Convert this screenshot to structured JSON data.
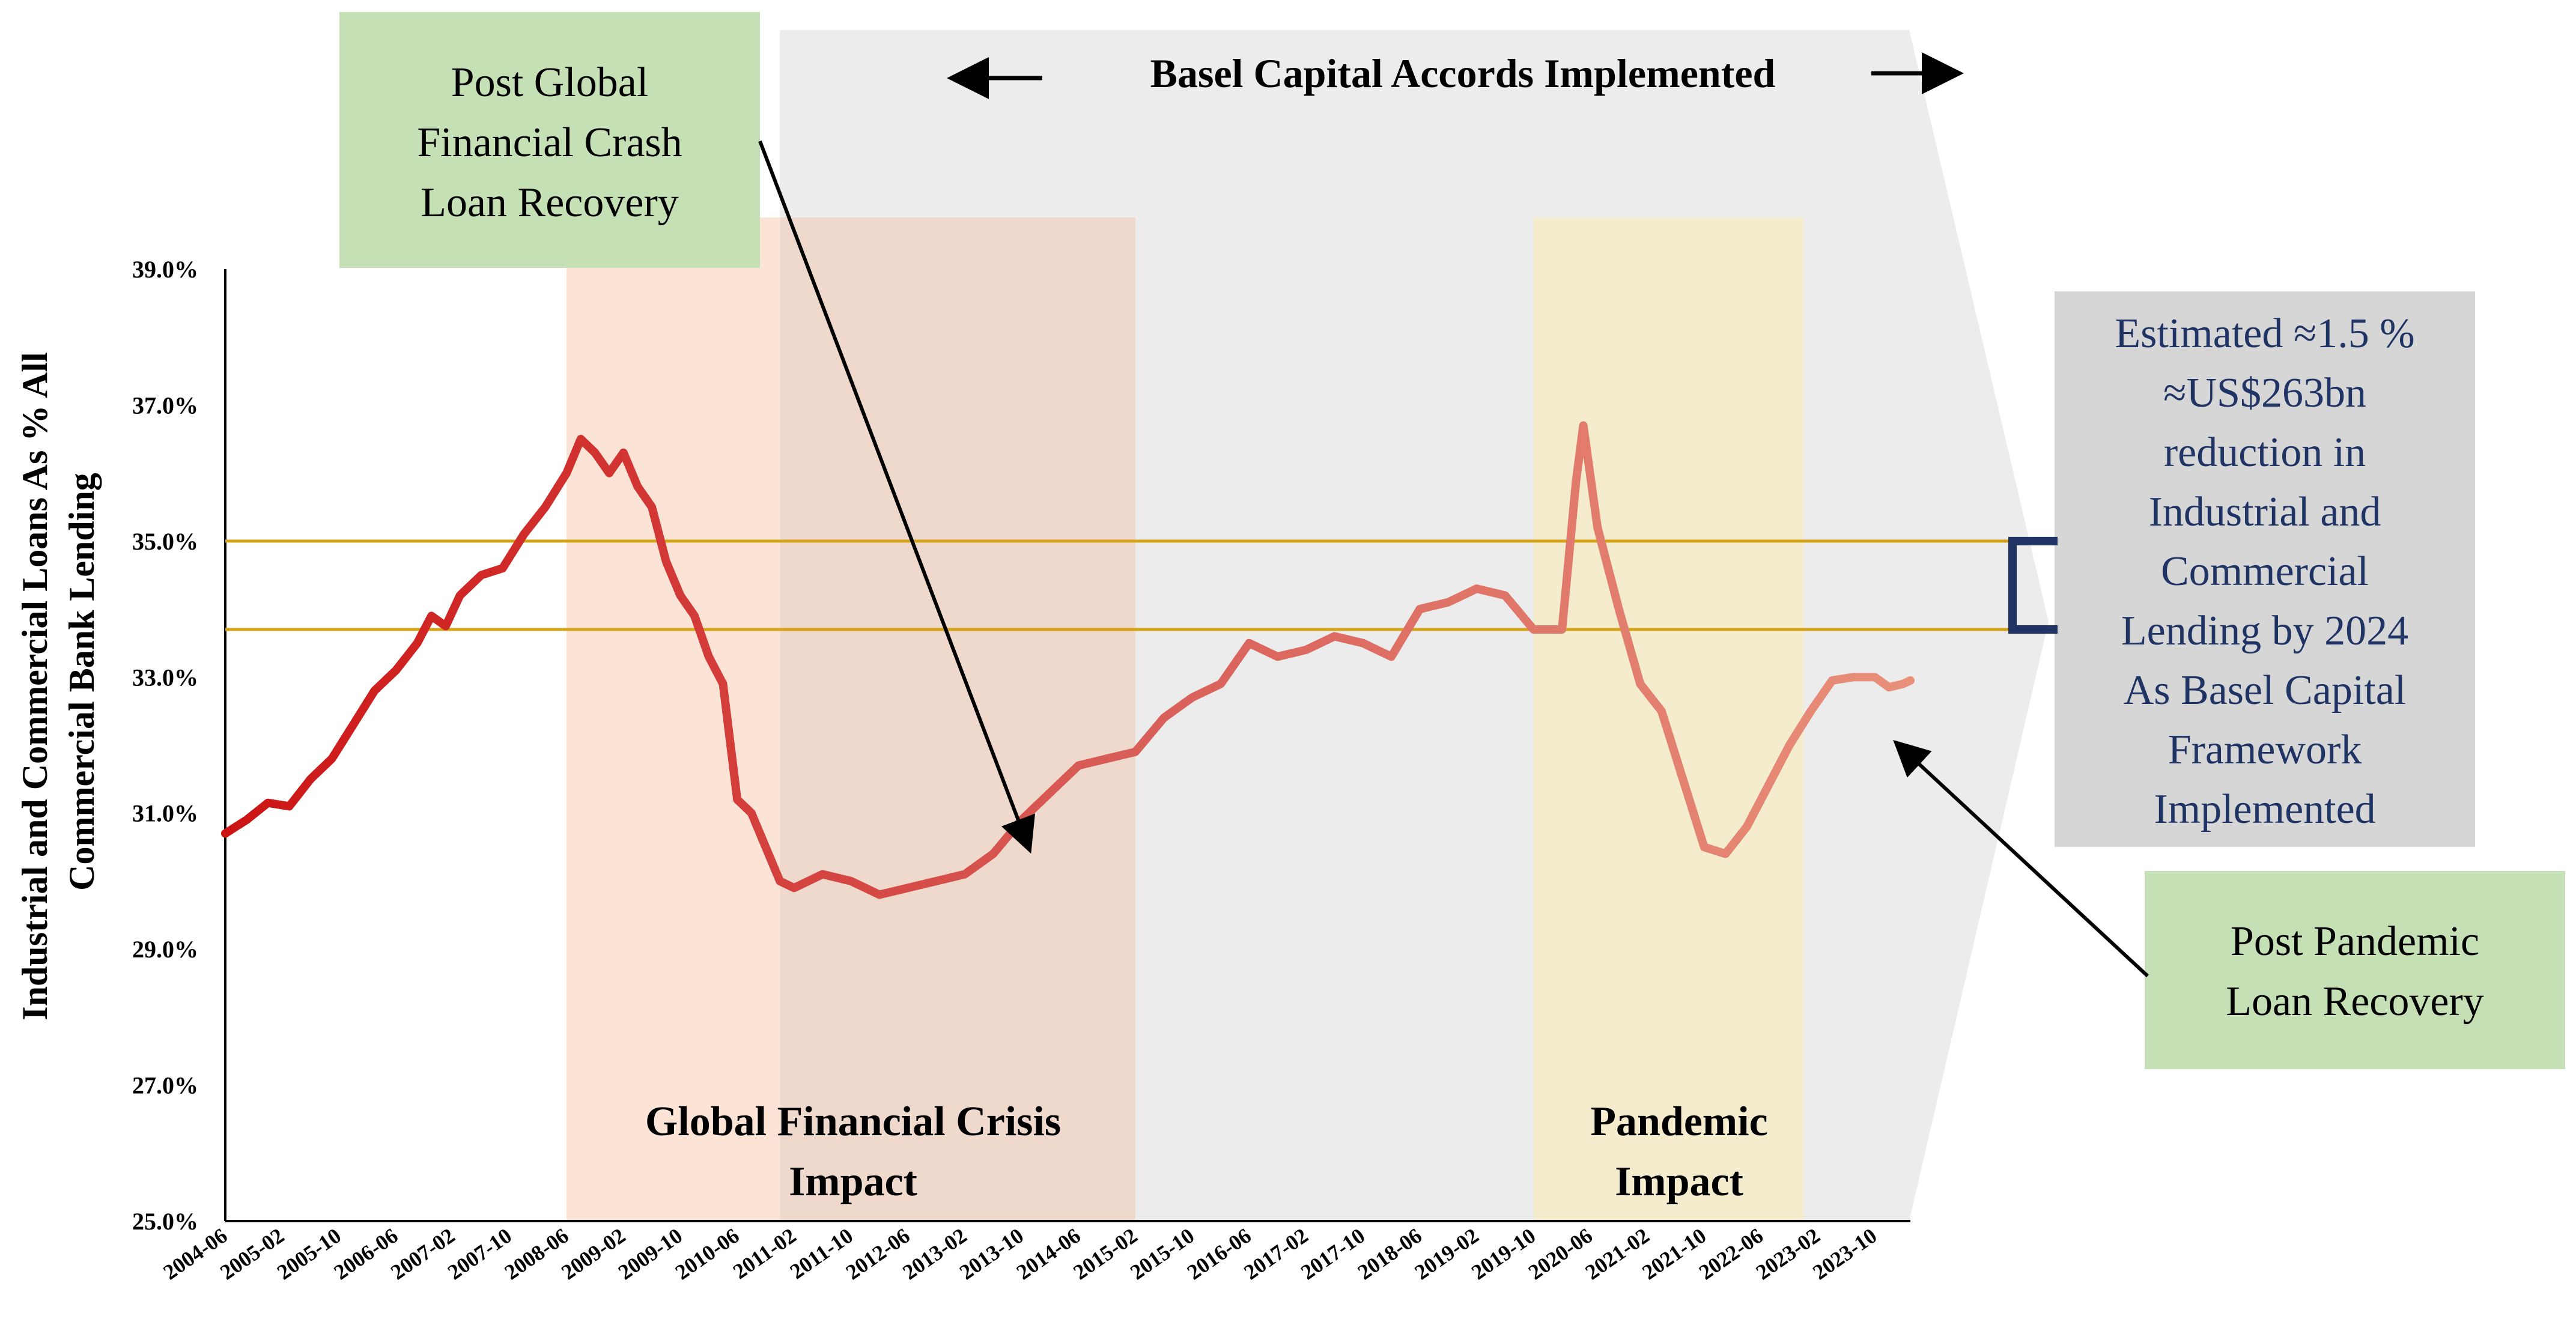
{
  "colors": {
    "basel_region": "#ececec",
    "gfc_band": "#fbe3d6",
    "gfc_overlap": "#efd9cd",
    "pandemic_band": "#f5ebcd",
    "reference_line": "#d4a51a",
    "bracket": "#1f3464",
    "callout_green": "#c5e0b4",
    "callout_gray": "#d6d6d6",
    "callout_gray_text": "#1f3464",
    "line_start": "#cc1414",
    "line_end": "#e8907a"
  },
  "chart_data": {
    "type": "line",
    "ylabel": "Industrial and Commercial Loans As % All Commercial Bank Lending",
    "ylim": [
      25.0,
      39.0
    ],
    "y_ticks": [
      "25.0%",
      "27.0%",
      "29.0%",
      "31.0%",
      "33.0%",
      "35.0%",
      "37.0%",
      "39.0%"
    ],
    "x_range": [
      "2004-06",
      "2024-03"
    ],
    "x_ticks": [
      "2004-06",
      "2005-02",
      "2005-10",
      "2006-06",
      "2007-02",
      "2007-10",
      "2008-06",
      "2009-02",
      "2009-10",
      "2010-06",
      "2011-02",
      "2011-10",
      "2012-06",
      "2013-02",
      "2013-10",
      "2014-06",
      "2015-02",
      "2015-10",
      "2016-06",
      "2017-02",
      "2017-10",
      "2018-06",
      "2019-02",
      "2019-10",
      "2020-06",
      "2021-02",
      "2021-10",
      "2022-06",
      "2023-02",
      "2023-10"
    ],
    "series": [
      {
        "name": "Industrial and Commercial Loans %",
        "points": [
          [
            "2004-06",
            30.7
          ],
          [
            "2004-09",
            30.9
          ],
          [
            "2004-12",
            31.15
          ],
          [
            "2005-03",
            31.1
          ],
          [
            "2005-06",
            31.5
          ],
          [
            "2005-09",
            31.8
          ],
          [
            "2005-12",
            32.3
          ],
          [
            "2006-03",
            32.8
          ],
          [
            "2006-06",
            33.1
          ],
          [
            "2006-09",
            33.5
          ],
          [
            "2006-11",
            33.9
          ],
          [
            "2007-01",
            33.75
          ],
          [
            "2007-03",
            34.2
          ],
          [
            "2007-06",
            34.5
          ],
          [
            "2007-09",
            34.6
          ],
          [
            "2007-12",
            35.1
          ],
          [
            "2008-03",
            35.5
          ],
          [
            "2008-06",
            36.0
          ],
          [
            "2008-08",
            36.5
          ],
          [
            "2008-10",
            36.3
          ],
          [
            "2008-12",
            36.0
          ],
          [
            "2009-02",
            36.3
          ],
          [
            "2009-04",
            35.8
          ],
          [
            "2009-06",
            35.5
          ],
          [
            "2009-08",
            34.7
          ],
          [
            "2009-10",
            34.2
          ],
          [
            "2009-12",
            33.9
          ],
          [
            "2010-02",
            33.3
          ],
          [
            "2010-04",
            32.9
          ],
          [
            "2010-06",
            31.2
          ],
          [
            "2010-08",
            31.0
          ],
          [
            "2010-10",
            30.5
          ],
          [
            "2010-12",
            30.0
          ],
          [
            "2011-02",
            29.9
          ],
          [
            "2011-06",
            30.1
          ],
          [
            "2011-10",
            30.0
          ],
          [
            "2012-02",
            29.8
          ],
          [
            "2012-06",
            29.9
          ],
          [
            "2012-10",
            30.0
          ],
          [
            "2013-02",
            30.1
          ],
          [
            "2013-06",
            30.4
          ],
          [
            "2013-10",
            30.9
          ],
          [
            "2014-02",
            31.3
          ],
          [
            "2014-06",
            31.7
          ],
          [
            "2014-10",
            31.8
          ],
          [
            "2015-02",
            31.9
          ],
          [
            "2015-06",
            32.4
          ],
          [
            "2015-10",
            32.7
          ],
          [
            "2016-02",
            32.9
          ],
          [
            "2016-06",
            33.5
          ],
          [
            "2016-10",
            33.3
          ],
          [
            "2017-02",
            33.4
          ],
          [
            "2017-06",
            33.6
          ],
          [
            "2017-10",
            33.5
          ],
          [
            "2018-02",
            33.3
          ],
          [
            "2018-06",
            34.0
          ],
          [
            "2018-10",
            34.1
          ],
          [
            "2019-02",
            34.3
          ],
          [
            "2019-06",
            34.2
          ],
          [
            "2019-10",
            33.7
          ],
          [
            "2020-02",
            33.7
          ],
          [
            "2020-04",
            35.9
          ],
          [
            "2020-05",
            36.7
          ],
          [
            "2020-07",
            35.2
          ],
          [
            "2020-10",
            34.0
          ],
          [
            "2021-01",
            32.9
          ],
          [
            "2021-04",
            32.5
          ],
          [
            "2021-07",
            31.5
          ],
          [
            "2021-10",
            30.5
          ],
          [
            "2022-01",
            30.4
          ],
          [
            "2022-04",
            30.8
          ],
          [
            "2022-07",
            31.4
          ],
          [
            "2022-10",
            32.0
          ],
          [
            "2023-01",
            32.5
          ],
          [
            "2023-04",
            32.95
          ],
          [
            "2023-07",
            33.0
          ],
          [
            "2023-10",
            33.0
          ],
          [
            "2023-12",
            32.85
          ],
          [
            "2024-02",
            32.9
          ],
          [
            "2024-03",
            32.95
          ]
        ]
      }
    ],
    "reference_lines": [
      35.0,
      33.7
    ],
    "shaded_periods": [
      {
        "name": "Global Financial Crisis Impact",
        "start": "2008-06",
        "end": "2015-02"
      },
      {
        "name": "Pandemic Impact",
        "start": "2019-10",
        "end": "2022-12"
      },
      {
        "name": "Post Global Financial Crash Loan Recovery",
        "start": "2010-12",
        "end": "2015-02"
      }
    ],
    "basel_region": {
      "start": "2010-12",
      "end": "2024-03"
    },
    "annotations": {
      "basel_title": "Basel Capital Accords Implemented",
      "gfc_label": [
        "Global Financial Crisis",
        "Impact"
      ],
      "pandemic_label": [
        "Pandemic",
        "Impact"
      ],
      "post_gfc_callout": [
        "Post Global",
        "Financial Crash",
        "Loan Recovery"
      ],
      "post_pandemic_callout": [
        "Post Pandemic",
        "Loan Recovery"
      ],
      "estimate_callout": [
        "Estimated ≈1.5 %",
        "≈US$263bn",
        "reduction in",
        "Industrial and",
        "Commercial",
        "Lending by 2024",
        "As Basel Capital",
        "Framework",
        "Implemented"
      ]
    }
  }
}
